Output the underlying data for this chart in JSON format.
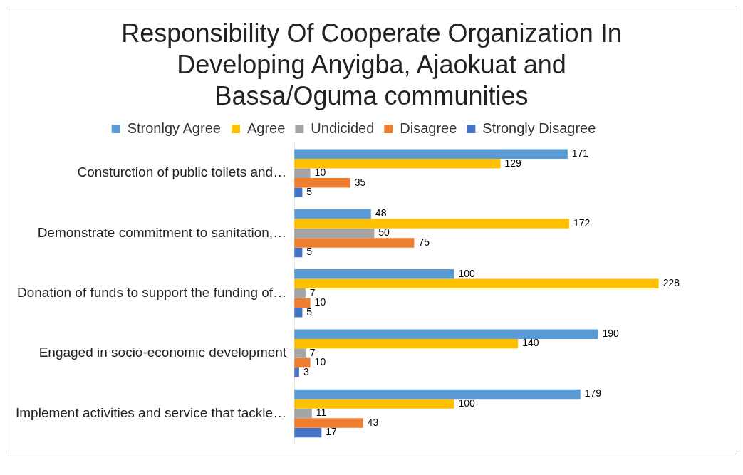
{
  "chart_data": {
    "type": "bar",
    "orientation": "horizontal",
    "title": "Responsibility Of Cooperate Organization In Developing Anyigba, Ajaokuat and Bassa/Oguma communities",
    "categories": [
      "Consturction of public toilets and…",
      "Demonstrate commitment to sanitation,…",
      "Donation of funds to support the funding of…",
      "Engaged in socio-economic development",
      "Implement activities and service that tackle…"
    ],
    "series": [
      {
        "name": "Stronlgy Agree",
        "color": "#5b9bd5",
        "values": [
          171,
          48,
          100,
          190,
          179
        ]
      },
      {
        "name": "Agree",
        "color": "#ffc000",
        "values": [
          129,
          172,
          228,
          140,
          100
        ]
      },
      {
        "name": "Undicided",
        "color": "#a5a5a5",
        "values": [
          10,
          50,
          7,
          7,
          11
        ]
      },
      {
        "name": "Disagree",
        "color": "#ed7d31",
        "values": [
          35,
          75,
          10,
          10,
          43
        ]
      },
      {
        "name": "Strongly Disagree",
        "color": "#4472c4",
        "values": [
          5,
          5,
          5,
          3,
          17
        ]
      }
    ],
    "data_labels": true,
    "legend": "top",
    "grid": false,
    "tick_labels": "y"
  }
}
